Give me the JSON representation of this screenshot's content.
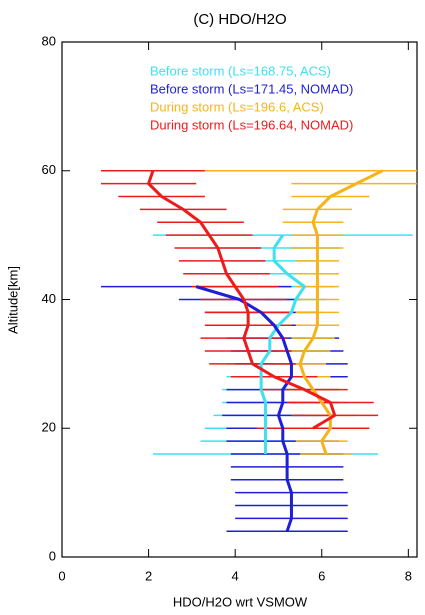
{
  "chart_data": {
    "type": "line",
    "title": "(C) HDO/H2O",
    "xlabel": "HDO/H2O wrt VSMOW",
    "ylabel": "Altitude[km]",
    "xlim": [
      0,
      8.2
    ],
    "xticks": [
      0,
      2,
      4,
      6,
      8
    ],
    "ylim": [
      0,
      80
    ],
    "yticks": [
      0,
      20,
      40,
      60,
      80
    ],
    "legend": "top",
    "series": [
      {
        "name": "Before storm (Ls=168.75, ACS)",
        "color": "#3fe0ef",
        "y": [
          16,
          18,
          20,
          22,
          24,
          26,
          28,
          30,
          32,
          34,
          36,
          38,
          40,
          42,
          44,
          46,
          48,
          50
        ],
        "x": [
          4.7,
          4.7,
          4.7,
          4.7,
          4.7,
          4.6,
          4.6,
          4.6,
          4.8,
          4.8,
          5.0,
          5.3,
          5.4,
          5.6,
          5.2,
          4.9,
          4.9,
          5.1
        ],
        "xerr": [
          2.6,
          1.5,
          1.4,
          1.2,
          1.0,
          0.9,
          0.8,
          0.8,
          0.8,
          0.8,
          0.7,
          0.7,
          0.7,
          0.7,
          0.8,
          1.0,
          1.5,
          3.0
        ]
      },
      {
        "name": "Before storm (Ls=171.45, NOMAD)",
        "color": "#1f1fd8",
        "y": [
          4,
          6,
          8,
          10,
          12,
          14,
          16,
          18,
          20,
          22,
          24,
          26,
          28,
          30,
          32,
          34,
          36,
          38,
          40,
          42
        ],
        "x": [
          5.2,
          5.3,
          5.3,
          5.3,
          5.2,
          5.2,
          5.2,
          5.1,
          5.1,
          5.0,
          5.1,
          5.1,
          5.3,
          5.3,
          5.2,
          5.1,
          4.9,
          4.6,
          4.1,
          3.1
        ],
        "xerr": [
          1.4,
          1.3,
          1.3,
          1.3,
          1.3,
          1.3,
          1.3,
          1.3,
          1.3,
          1.3,
          1.3,
          1.3,
          1.3,
          1.3,
          1.3,
          1.3,
          1.3,
          1.3,
          1.4,
          2.2
        ]
      },
      {
        "name": "During storm (Ls=196.6, ACS)",
        "color": "#f5b41c",
        "y": [
          16,
          18,
          20,
          22,
          24,
          26,
          28,
          30,
          32,
          34,
          36,
          38,
          40,
          42,
          44,
          46,
          48,
          50,
          52,
          54,
          56,
          58,
          60
        ],
        "x": [
          6.1,
          6.0,
          6.2,
          6.2,
          6.0,
          5.8,
          5.6,
          5.5,
          5.6,
          5.8,
          5.9,
          5.9,
          5.9,
          5.9,
          5.9,
          5.9,
          5.9,
          5.9,
          5.8,
          5.9,
          6.2,
          6.8,
          7.4
        ],
        "xerr": [
          0.6,
          0.6,
          0.6,
          0.6,
          0.6,
          0.6,
          0.6,
          0.6,
          0.6,
          0.5,
          0.5,
          0.5,
          0.5,
          0.5,
          0.5,
          0.5,
          0.6,
          0.6,
          0.7,
          0.8,
          0.9,
          1.5,
          4.2
        ]
      },
      {
        "name": "During storm (Ls=196.64, NOMAD)",
        "color": "#ec1c1c",
        "y": [
          20,
          22,
          24,
          26,
          28,
          30,
          32,
          34,
          36,
          38,
          40,
          42,
          44,
          46,
          48,
          50,
          52,
          54,
          56,
          58,
          60
        ],
        "x": [
          5.8,
          6.3,
          6.2,
          5.6,
          4.9,
          4.4,
          4.3,
          4.2,
          4.3,
          4.3,
          4.2,
          4.0,
          3.8,
          3.7,
          3.6,
          3.4,
          3.2,
          2.8,
          2.3,
          2.0,
          2.1
        ],
        "xerr": [
          1.3,
          1.0,
          1.0,
          1.0,
          1.0,
          1.0,
          1.0,
          1.0,
          1.0,
          1.0,
          1.0,
          1.0,
          1.0,
          1.0,
          1.0,
          1.0,
          1.0,
          1.0,
          1.0,
          1.1,
          1.2
        ]
      }
    ]
  }
}
